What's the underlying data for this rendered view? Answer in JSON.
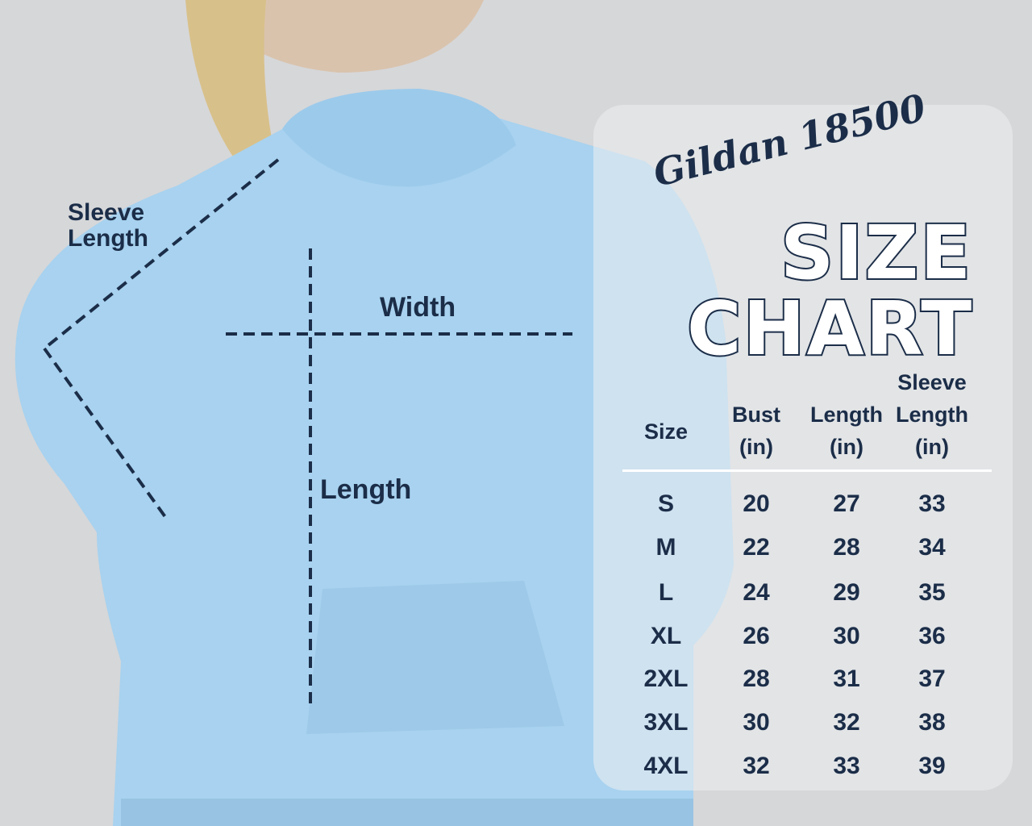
{
  "labels": {
    "sleeve_length": "Sleeve Length",
    "width": "Width",
    "length": "Length"
  },
  "chart": {
    "brand": "Gildan 18500",
    "title_line1": "SIZE",
    "title_line2": "CHART",
    "headers": [
      "Size",
      "Bust (in)",
      "Length (in)",
      "Sleeve Length (in)"
    ],
    "header_lines": [
      [
        "Size"
      ],
      [
        "Bust",
        "(in)"
      ],
      [
        "Length",
        "(in)"
      ],
      [
        "Sleeve",
        "Length",
        "(in)"
      ]
    ],
    "rows": [
      [
        "S",
        "20",
        "27",
        "33"
      ],
      [
        "M",
        "22",
        "28",
        "34"
      ],
      [
        "L",
        "24",
        "29",
        "35"
      ],
      [
        "XL",
        "26",
        "30",
        "36"
      ],
      [
        "2XL",
        "28",
        "31",
        "37"
      ],
      [
        "3XL",
        "30",
        "32",
        "38"
      ],
      [
        "4XL",
        "32",
        "33",
        "39"
      ]
    ]
  },
  "colors": {
    "navy": "#1b2d48",
    "hoodie": "#a8d2ef",
    "background": "#d6d7d9"
  }
}
